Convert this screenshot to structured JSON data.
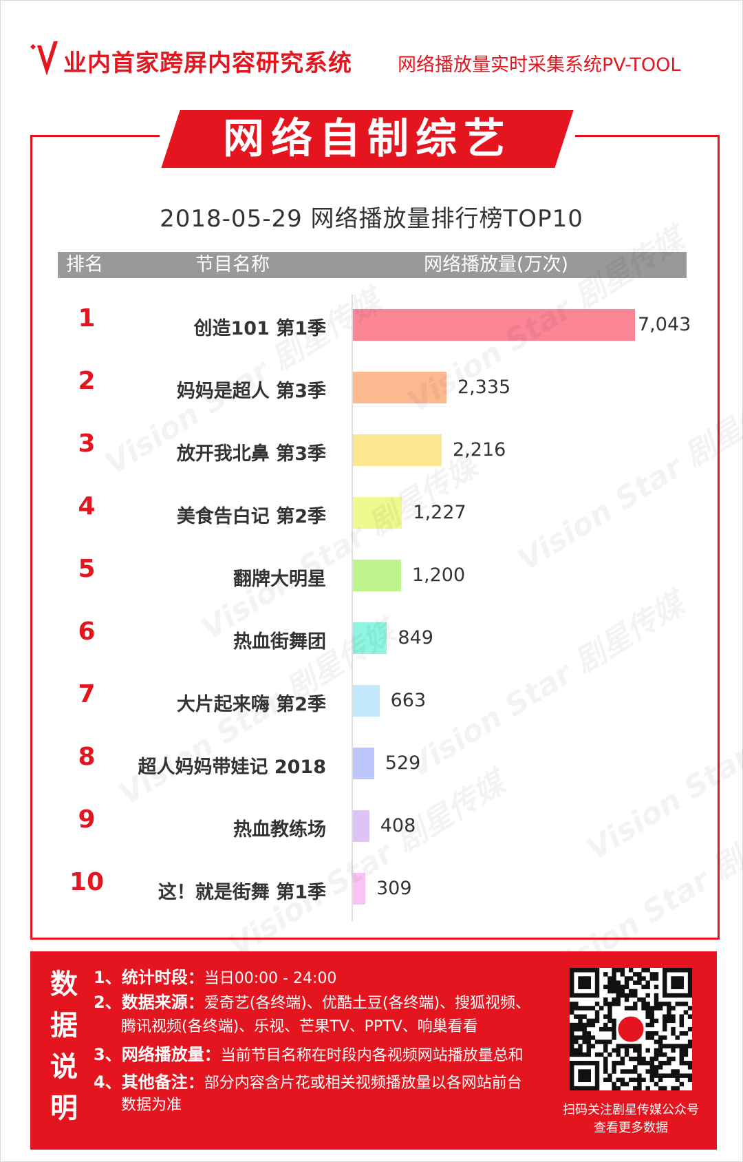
{
  "header": {
    "title": "业内首家跨屏内容研究系统",
    "subtitle": "网络播放量实时采集系统PV-TOOL"
  },
  "banner_title": "网络自制综艺",
  "table_header": {
    "rank": "排名",
    "name": "节目名称",
    "value": "网络播放量(万次)"
  },
  "watermark_text": "Vision Star 剧星传媒",
  "chart_data": {
    "type": "bar",
    "orientation": "horizontal",
    "title": "2018-05-29 网络播放量排行榜TOP10",
    "ylabel": "网络播放量(万次)",
    "ranks": [
      "1",
      "2",
      "3",
      "4",
      "5",
      "6",
      "7",
      "8",
      "9",
      "10"
    ],
    "categories": [
      "创造101 第1季",
      "妈妈是超人 第3季",
      "放开我北鼻 第3季",
      "美食告白记 第2季",
      "翻牌大明星",
      "热血街舞团",
      "大片起来嗨 第2季",
      "超人妈妈带娃记 2018",
      "热血教练场",
      "这！就是街舞 第1季"
    ],
    "values": [
      7043,
      2335,
      2216,
      1227,
      1200,
      849,
      663,
      529,
      408,
      309
    ],
    "value_labels": [
      "7,043",
      "2,335",
      "2,216",
      "1,227",
      "1,200",
      "849",
      "663",
      "529",
      "408",
      "309"
    ],
    "colors": [
      "#fb8695",
      "#fcb990",
      "#fde690",
      "#effa8e",
      "#bdf58c",
      "#8ef6e2",
      "#c1e8fb",
      "#bcc6fb",
      "#dfc3f5",
      "#fbc3f4"
    ],
    "xlim": [
      0,
      7043
    ],
    "grid": false,
    "legend": "none"
  },
  "footer": {
    "side_label": [
      "数",
      "据",
      "说",
      "明"
    ],
    "notes": [
      {
        "label": "1、统计时段：",
        "text": "当日00:00 - 24:00"
      },
      {
        "label": "2、数据来源：",
        "text": "爱奇艺(各终端)、优酷土豆(各终端)、搜狐视频、"
      },
      {
        "label": "",
        "text": "腾讯视频(各终端)、乐视、芒果TV、PPTV、响巢看看"
      },
      {
        "label": "3、网络播放量：",
        "text": "当前节目名称在时段内各视频网站播放量总和"
      },
      {
        "label": "4、其他备注：",
        "text": "部分内容含片花或相关视频播放量以各网站前台"
      },
      {
        "label": "",
        "text": "数据为准"
      }
    ],
    "qr_caption": [
      "扫码关注剧星传媒公众号",
      "查看更多数据"
    ]
  },
  "brand_color": "#e4151f"
}
